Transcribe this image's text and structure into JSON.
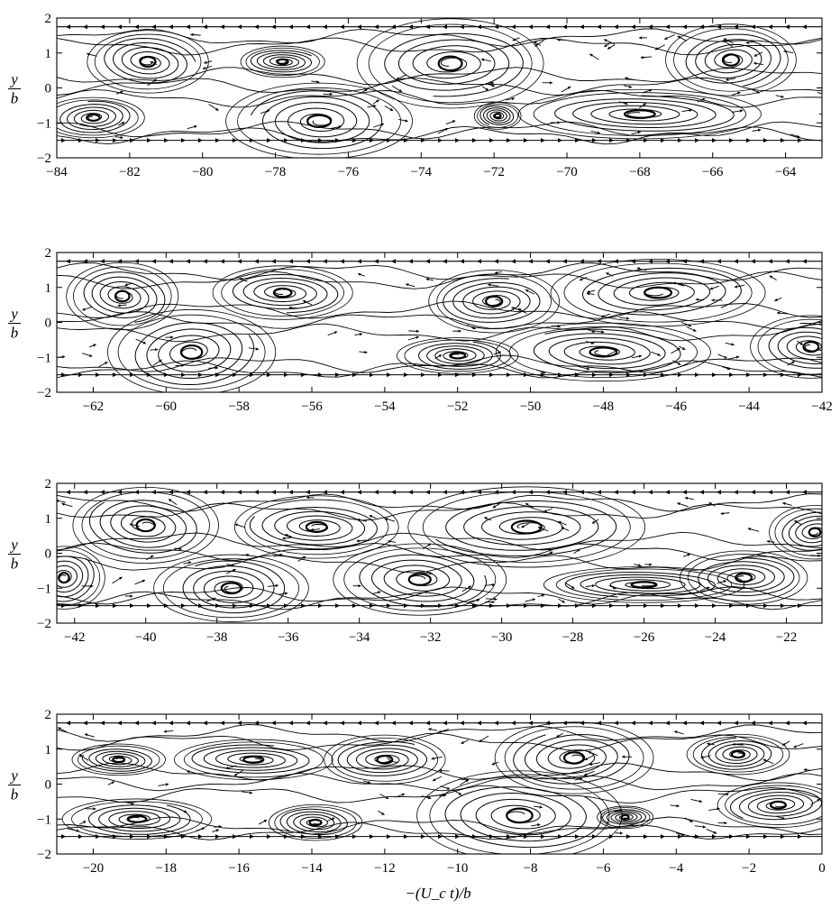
{
  "figure": {
    "xlabel": "−(U_c t)/b",
    "ylabel_num": "y",
    "ylabel_den": "b",
    "line_color": "#000000",
    "background": "#ffffff"
  },
  "chart_data": [
    {
      "type": "streamline",
      "panel": 1,
      "xlim": [
        -84,
        -63
      ],
      "ylim": [
        -2,
        2
      ],
      "xticks": [
        -84,
        -82,
        -80,
        -78,
        -76,
        -74,
        -72,
        -70,
        -68,
        -66,
        -64
      ],
      "xtick_labels": [
        "−84",
        "−82",
        "−80",
        "−78",
        "−76",
        "−74",
        "−72",
        "−70",
        "−68",
        "−66",
        "−64"
      ],
      "yticks": [
        -2,
        -1,
        0,
        1,
        2
      ],
      "ytick_labels": [
        "−2",
        "−1",
        "0",
        "1",
        "2"
      ],
      "ylabel": "y/b",
      "boundary_lines_y": [
        1.75,
        -1.5
      ],
      "vortices": [
        {
          "x": -81.5,
          "y": 0.75,
          "rx": 1.3,
          "ry": 0.7,
          "sense": "cw"
        },
        {
          "x": -77.8,
          "y": 0.75,
          "rx": 0.9,
          "ry": 0.35,
          "sense": "cw"
        },
        {
          "x": -73.2,
          "y": 0.7,
          "rx": 2.0,
          "ry": 1.0,
          "sense": "cw"
        },
        {
          "x": -65.5,
          "y": 0.8,
          "rx": 1.4,
          "ry": 0.8,
          "sense": "cw"
        },
        {
          "x": -83.0,
          "y": -0.85,
          "rx": 1.1,
          "ry": 0.45,
          "sense": "ccw"
        },
        {
          "x": -76.8,
          "y": -0.95,
          "rx": 2.0,
          "ry": 0.85,
          "sense": "ccw"
        },
        {
          "x": -71.9,
          "y": -0.8,
          "rx": 0.5,
          "ry": 0.3,
          "sense": "ccw"
        },
        {
          "x": -68.0,
          "y": -0.75,
          "rx": 2.6,
          "ry": 0.55,
          "sense": "ccw"
        }
      ]
    },
    {
      "type": "streamline",
      "panel": 2,
      "xlim": [
        -63,
        -42
      ],
      "ylim": [
        -2,
        2
      ],
      "xticks": [
        -62,
        -60,
        -58,
        -56,
        -54,
        -52,
        -50,
        -48,
        -46,
        -44,
        -42
      ],
      "xtick_labels": [
        "−62",
        "−60",
        "−58",
        "−56",
        "−54",
        "−52",
        "−50",
        "−48",
        "−46",
        "−44",
        "−42"
      ],
      "yticks": [
        -2,
        -1,
        0,
        1,
        2
      ],
      "ytick_labels": [
        "−2",
        "−1",
        "0",
        "1",
        "2"
      ],
      "ylabel": "y/b",
      "boundary_lines_y": [
        1.75,
        -1.5
      ],
      "vortices": [
        {
          "x": -61.2,
          "y": 0.75,
          "rx": 1.2,
          "ry": 0.75,
          "sense": "cw"
        },
        {
          "x": -56.8,
          "y": 0.85,
          "rx": 1.5,
          "ry": 0.6,
          "sense": "cw"
        },
        {
          "x": -51.0,
          "y": 0.6,
          "rx": 1.4,
          "ry": 0.7,
          "sense": "cw"
        },
        {
          "x": -46.5,
          "y": 0.85,
          "rx": 2.3,
          "ry": 0.75,
          "sense": "cw"
        },
        {
          "x": -59.3,
          "y": -0.85,
          "rx": 1.8,
          "ry": 0.95,
          "sense": "ccw"
        },
        {
          "x": -52.0,
          "y": -0.95,
          "rx": 1.3,
          "ry": 0.4,
          "sense": "ccw"
        },
        {
          "x": -48.0,
          "y": -0.85,
          "rx": 2.3,
          "ry": 0.65,
          "sense": "ccw"
        },
        {
          "x": -42.3,
          "y": -0.7,
          "rx": 1.3,
          "ry": 0.7,
          "sense": "ccw"
        }
      ]
    },
    {
      "type": "streamline",
      "panel": 3,
      "xlim": [
        -42.5,
        -21
      ],
      "ylim": [
        -2,
        2
      ],
      "xticks": [
        -42,
        -40,
        -38,
        -36,
        -34,
        -32,
        -30,
        -28,
        -26,
        -24,
        -22
      ],
      "xtick_labels": [
        "−42",
        "−40",
        "−38",
        "−36",
        "−34",
        "−32",
        "−30",
        "−28",
        "−26",
        "−24",
        "−22"
      ],
      "yticks": [
        -2,
        -1,
        0,
        1,
        2
      ],
      "ytick_labels": [
        "−2",
        "−1",
        "0",
        "1",
        "2"
      ],
      "ylabel": "y/b",
      "boundary_lines_y": [
        1.75,
        -1.5
      ],
      "vortices": [
        {
          "x": -40.0,
          "y": 0.8,
          "rx": 1.6,
          "ry": 0.85,
          "sense": "cw"
        },
        {
          "x": -35.2,
          "y": 0.75,
          "rx": 1.8,
          "ry": 0.7,
          "sense": "cw"
        },
        {
          "x": -29.3,
          "y": 0.75,
          "rx": 2.6,
          "ry": 0.9,
          "sense": "cw"
        },
        {
          "x": -21.2,
          "y": 0.6,
          "rx": 1.0,
          "ry": 0.6,
          "sense": "cw"
        },
        {
          "x": -42.3,
          "y": -0.7,
          "rx": 0.9,
          "ry": 0.7,
          "sense": "ccw"
        },
        {
          "x": -37.6,
          "y": -1.0,
          "rx": 1.7,
          "ry": 0.75,
          "sense": "ccw"
        },
        {
          "x": -32.3,
          "y": -0.75,
          "rx": 1.9,
          "ry": 0.8,
          "sense": "ccw"
        },
        {
          "x": -26.0,
          "y": -0.9,
          "rx": 2.2,
          "ry": 0.4,
          "sense": "ccw"
        },
        {
          "x": -23.2,
          "y": -0.7,
          "rx": 1.4,
          "ry": 0.6,
          "sense": "ccw"
        }
      ]
    },
    {
      "type": "streamline",
      "panel": 4,
      "xlim": [
        -21,
        0
      ],
      "ylim": [
        -2,
        2
      ],
      "xticks": [
        -20,
        -18,
        -16,
        -14,
        -12,
        -10,
        -8,
        -6,
        -4,
        -2,
        0
      ],
      "xtick_labels": [
        "−20",
        "−18",
        "−16",
        "−14",
        "−12",
        "−10",
        "−8",
        "−6",
        "−4",
        "−2",
        "0"
      ],
      "yticks": [
        -2,
        -1,
        0,
        1,
        2
      ],
      "ytick_labels": [
        "−2",
        "−1",
        "0",
        "1",
        "2"
      ],
      "ylabel": "y/b",
      "boundary_lines_y": [
        1.75,
        -1.5
      ],
      "vortices": [
        {
          "x": -19.3,
          "y": 0.7,
          "rx": 1.0,
          "ry": 0.35,
          "sense": "cw"
        },
        {
          "x": -15.6,
          "y": 0.7,
          "rx": 1.7,
          "ry": 0.45,
          "sense": "cw"
        },
        {
          "x": -12.0,
          "y": 0.7,
          "rx": 1.3,
          "ry": 0.55,
          "sense": "cw"
        },
        {
          "x": -6.8,
          "y": 0.75,
          "rx": 1.7,
          "ry": 0.8,
          "sense": "cw"
        },
        {
          "x": -2.3,
          "y": 0.85,
          "rx": 1.1,
          "ry": 0.45,
          "sense": "cw"
        },
        {
          "x": -18.8,
          "y": -1.0,
          "rx": 1.6,
          "ry": 0.45,
          "sense": "ccw"
        },
        {
          "x": -13.9,
          "y": -1.1,
          "rx": 1.0,
          "ry": 0.4,
          "sense": "ccw"
        },
        {
          "x": -8.3,
          "y": -0.9,
          "rx": 2.2,
          "ry": 1.0,
          "sense": "ccw"
        },
        {
          "x": -5.4,
          "y": -0.95,
          "rx": 0.6,
          "ry": 0.25,
          "sense": "ccw"
        },
        {
          "x": -1.2,
          "y": -0.6,
          "rx": 1.3,
          "ry": 0.5,
          "sense": "ccw"
        }
      ]
    }
  ]
}
